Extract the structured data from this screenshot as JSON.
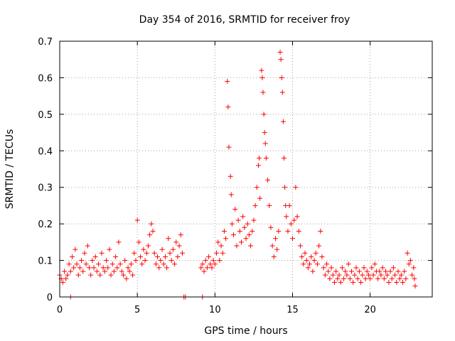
{
  "chart_data": {
    "type": "scatter",
    "title": "Day 354 of 2016, SRMTID for receiver froy",
    "xlabel": "GPS time / hours",
    "ylabel": "SRMTID / TECUs",
    "xlim": [
      0,
      24
    ],
    "ylim": [
      0,
      0.7
    ],
    "xticks": [
      0,
      5,
      10,
      15,
      20
    ],
    "yticks": [
      0,
      0.1,
      0.2,
      0.3,
      0.4,
      0.5,
      0.6,
      0.7
    ],
    "x_tick_labels": [
      "0",
      "5",
      "10",
      "15",
      "20"
    ],
    "y_tick_labels": [
      "0",
      "0.1",
      "0.2",
      "0.3",
      "0.4",
      "0.5",
      "0.6",
      "0.7"
    ],
    "grid": true,
    "marker": "plus",
    "series": [
      {
        "name": "SRMTID",
        "color": "#ff0000",
        "points": [
          [
            0.0,
            0.06
          ],
          [
            0.1,
            0.05
          ],
          [
            0.2,
            0.04
          ],
          [
            0.3,
            0.07
          ],
          [
            0.4,
            0.05
          ],
          [
            0.5,
            0.06
          ],
          [
            0.6,
            0.09
          ],
          [
            0.7,
            0.07
          ],
          [
            0.8,
            0.11
          ],
          [
            0.9,
            0.08
          ],
          [
            1.0,
            0.13
          ],
          [
            1.1,
            0.09
          ],
          [
            1.2,
            0.06
          ],
          [
            1.3,
            0.08
          ],
          [
            1.4,
            0.1
          ],
          [
            1.5,
            0.07
          ],
          [
            1.6,
            0.12
          ],
          [
            1.7,
            0.09
          ],
          [
            1.8,
            0.14
          ],
          [
            1.9,
            0.08
          ],
          [
            2.0,
            0.06
          ],
          [
            2.1,
            0.1
          ],
          [
            2.2,
            0.08
          ],
          [
            2.3,
            0.11
          ],
          [
            2.4,
            0.07
          ],
          [
            2.5,
            0.09
          ],
          [
            2.6,
            0.06
          ],
          [
            2.7,
            0.12
          ],
          [
            2.8,
            0.08
          ],
          [
            2.9,
            0.07
          ],
          [
            3.0,
            0.1
          ],
          [
            3.1,
            0.08
          ],
          [
            3.2,
            0.13
          ],
          [
            3.3,
            0.06
          ],
          [
            3.4,
            0.09
          ],
          [
            3.5,
            0.07
          ],
          [
            3.6,
            0.11
          ],
          [
            3.7,
            0.08
          ],
          [
            3.8,
            0.15
          ],
          [
            3.9,
            0.09
          ],
          [
            4.0,
            0.07
          ],
          [
            4.1,
            0.06
          ],
          [
            4.2,
            0.1
          ],
          [
            4.3,
            0.05
          ],
          [
            4.4,
            0.08
          ],
          [
            4.5,
            0.07
          ],
          [
            4.6,
            0.09
          ],
          [
            4.7,
            0.06
          ],
          [
            4.8,
            0.12
          ],
          [
            4.9,
            0.1
          ],
          [
            5.0,
            0.21
          ],
          [
            5.1,
            0.15
          ],
          [
            5.2,
            0.11
          ],
          [
            5.3,
            0.09
          ],
          [
            5.4,
            0.13
          ],
          [
            5.5,
            0.1
          ],
          [
            5.6,
            0.12
          ],
          [
            5.7,
            0.14
          ],
          [
            5.8,
            0.17
          ],
          [
            5.9,
            0.2
          ],
          [
            6.0,
            0.18
          ],
          [
            6.1,
            0.12
          ],
          [
            6.2,
            0.09
          ],
          [
            6.3,
            0.11
          ],
          [
            6.4,
            0.08
          ],
          [
            6.5,
            0.1
          ],
          [
            6.6,
            0.13
          ],
          [
            6.7,
            0.09
          ],
          [
            6.8,
            0.11
          ],
          [
            6.9,
            0.08
          ],
          [
            7.0,
            0.16
          ],
          [
            7.1,
            0.12
          ],
          [
            7.2,
            0.1
          ],
          [
            7.3,
            0.13
          ],
          [
            7.4,
            0.09
          ],
          [
            7.5,
            0.15
          ],
          [
            7.6,
            0.11
          ],
          [
            7.7,
            0.14
          ],
          [
            7.8,
            0.17
          ],
          [
            7.9,
            0.12
          ],
          [
            9.1,
            0.08
          ],
          [
            9.2,
            0.09
          ],
          [
            9.3,
            0.07
          ],
          [
            9.4,
            0.1
          ],
          [
            9.5,
            0.08
          ],
          [
            9.6,
            0.11
          ],
          [
            9.7,
            0.09
          ],
          [
            9.8,
            0.08
          ],
          [
            9.9,
            0.1
          ],
          [
            10.0,
            0.09
          ],
          [
            10.1,
            0.12
          ],
          [
            10.2,
            0.15
          ],
          [
            10.3,
            0.1
          ],
          [
            10.4,
            0.14
          ],
          [
            10.5,
            0.12
          ],
          [
            10.6,
            0.18
          ],
          [
            10.7,
            0.16
          ],
          [
            10.8,
            0.59
          ],
          [
            10.85,
            0.52
          ],
          [
            10.9,
            0.41
          ],
          [
            11.0,
            0.33
          ],
          [
            11.05,
            0.28
          ],
          [
            11.1,
            0.2
          ],
          [
            11.2,
            0.17
          ],
          [
            11.3,
            0.24
          ],
          [
            11.4,
            0.14
          ],
          [
            11.5,
            0.21
          ],
          [
            11.6,
            0.18
          ],
          [
            11.7,
            0.15
          ],
          [
            11.8,
            0.22
          ],
          [
            11.9,
            0.19
          ],
          [
            12.0,
            0.16
          ],
          [
            12.1,
            0.2
          ],
          [
            12.2,
            0.17
          ],
          [
            12.3,
            0.14
          ],
          [
            12.4,
            0.18
          ],
          [
            12.5,
            0.21
          ],
          [
            12.6,
            0.25
          ],
          [
            12.7,
            0.3
          ],
          [
            12.8,
            0.36
          ],
          [
            12.85,
            0.38
          ],
          [
            12.9,
            0.27
          ],
          [
            13.0,
            0.62
          ],
          [
            13.05,
            0.6
          ],
          [
            13.1,
            0.56
          ],
          [
            13.15,
            0.5
          ],
          [
            13.2,
            0.45
          ],
          [
            13.25,
            0.42
          ],
          [
            13.3,
            0.38
          ],
          [
            13.4,
            0.32
          ],
          [
            13.5,
            0.25
          ],
          [
            13.6,
            0.19
          ],
          [
            13.7,
            0.14
          ],
          [
            13.8,
            0.11
          ],
          [
            13.9,
            0.16
          ],
          [
            14.0,
            0.13
          ],
          [
            14.1,
            0.18
          ],
          [
            14.2,
            0.67
          ],
          [
            14.25,
            0.65
          ],
          [
            14.3,
            0.6
          ],
          [
            14.35,
            0.56
          ],
          [
            14.4,
            0.48
          ],
          [
            14.45,
            0.38
          ],
          [
            14.5,
            0.3
          ],
          [
            14.55,
            0.25
          ],
          [
            14.6,
            0.22
          ],
          [
            14.7,
            0.18
          ],
          [
            14.8,
            0.25
          ],
          [
            14.9,
            0.2
          ],
          [
            15.0,
            0.16
          ],
          [
            15.1,
            0.21
          ],
          [
            15.2,
            0.3
          ],
          [
            15.3,
            0.22
          ],
          [
            15.4,
            0.18
          ],
          [
            15.5,
            0.14
          ],
          [
            15.6,
            0.11
          ],
          [
            15.7,
            0.09
          ],
          [
            15.8,
            0.12
          ],
          [
            15.9,
            0.1
          ],
          [
            16.0,
            0.08
          ],
          [
            16.1,
            0.09
          ],
          [
            16.2,
            0.11
          ],
          [
            16.3,
            0.07
          ],
          [
            16.4,
            0.1
          ],
          [
            16.5,
            0.12
          ],
          [
            16.6,
            0.09
          ],
          [
            16.7,
            0.14
          ],
          [
            16.8,
            0.18
          ],
          [
            16.9,
            0.11
          ],
          [
            17.0,
            0.08
          ],
          [
            17.1,
            0.06
          ],
          [
            17.2,
            0.09
          ],
          [
            17.3,
            0.07
          ],
          [
            17.4,
            0.05
          ],
          [
            17.5,
            0.08
          ],
          [
            17.6,
            0.06
          ],
          [
            17.7,
            0.04
          ],
          [
            17.8,
            0.07
          ],
          [
            17.9,
            0.05
          ],
          [
            18.0,
            0.06
          ],
          [
            18.1,
            0.04
          ],
          [
            18.2,
            0.08
          ],
          [
            18.3,
            0.05
          ],
          [
            18.4,
            0.07
          ],
          [
            18.5,
            0.06
          ],
          [
            18.6,
            0.09
          ],
          [
            18.7,
            0.05
          ],
          [
            18.8,
            0.07
          ],
          [
            18.9,
            0.04
          ],
          [
            19.0,
            0.06
          ],
          [
            19.1,
            0.08
          ],
          [
            19.2,
            0.05
          ],
          [
            19.3,
            0.07
          ],
          [
            19.4,
            0.04
          ],
          [
            19.5,
            0.06
          ],
          [
            19.6,
            0.08
          ],
          [
            19.7,
            0.05
          ],
          [
            19.8,
            0.07
          ],
          [
            19.9,
            0.06
          ],
          [
            20.0,
            0.05
          ],
          [
            20.1,
            0.08
          ],
          [
            20.2,
            0.06
          ],
          [
            20.3,
            0.09
          ],
          [
            20.4,
            0.07
          ],
          [
            20.5,
            0.05
          ],
          [
            20.6,
            0.07
          ],
          [
            20.7,
            0.06
          ],
          [
            20.8,
            0.08
          ],
          [
            20.9,
            0.05
          ],
          [
            21.0,
            0.07
          ],
          [
            21.1,
            0.06
          ],
          [
            21.2,
            0.04
          ],
          [
            21.3,
            0.07
          ],
          [
            21.4,
            0.05
          ],
          [
            21.5,
            0.08
          ],
          [
            21.6,
            0.06
          ],
          [
            21.7,
            0.04
          ],
          [
            21.8,
            0.07
          ],
          [
            21.9,
            0.05
          ],
          [
            22.0,
            0.06
          ],
          [
            22.1,
            0.04
          ],
          [
            22.2,
            0.07
          ],
          [
            22.3,
            0.05
          ],
          [
            22.4,
            0.12
          ],
          [
            22.5,
            0.09
          ],
          [
            22.6,
            0.1
          ],
          [
            22.7,
            0.06
          ],
          [
            22.8,
            0.08
          ],
          [
            22.85,
            0.05
          ],
          [
            22.9,
            0.03
          ],
          [
            0.7,
            0.0
          ],
          [
            8.0,
            0.0
          ],
          [
            8.1,
            0.0
          ],
          [
            9.2,
            0.0
          ]
        ]
      }
    ]
  }
}
